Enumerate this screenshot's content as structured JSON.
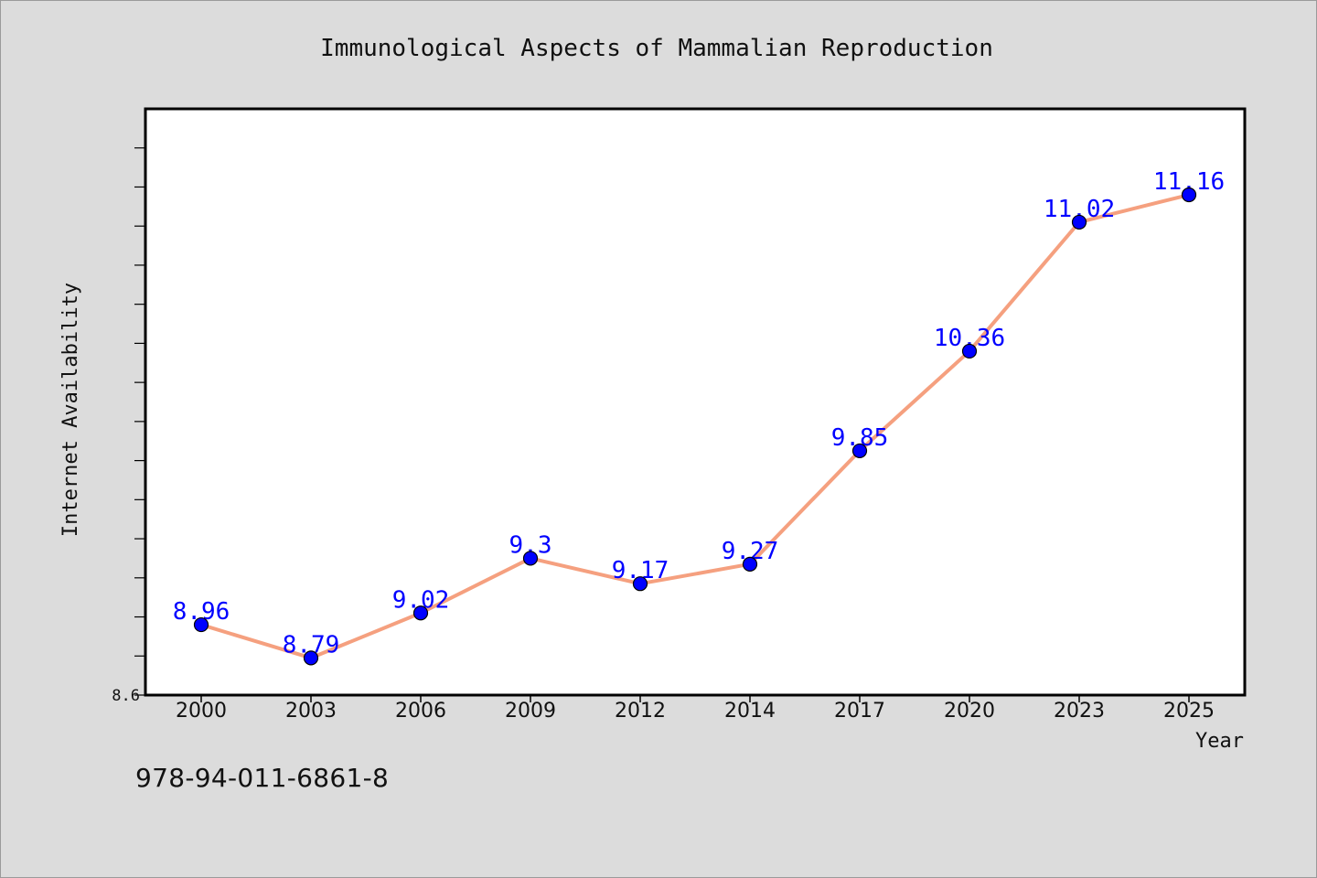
{
  "chart_data": {
    "type": "line",
    "title": "Immunological Aspects of Mammalian Reproduction",
    "xlabel": "Year",
    "ylabel": "Internet Availability",
    "categories": [
      "2000",
      "2003",
      "2006",
      "2009",
      "2012",
      "2014",
      "2017",
      "2020",
      "2023",
      "2025"
    ],
    "series": [
      {
        "values": [
          8.96,
          8.79,
          9.02,
          9.3,
          9.17,
          9.27,
          9.85,
          10.36,
          11.02,
          11.16
        ],
        "labels": [
          "8.96",
          "8.79",
          "9.02",
          "9.3",
          "9.17",
          "9.27",
          "9.85",
          "10.36",
          "11.02",
          "11.16"
        ]
      }
    ],
    "ylim": [
      8.6,
      11.6
    ],
    "y_tick_labels": [
      "8.6"
    ],
    "y_minor_tick_step": 0.2,
    "grid": false,
    "legend": "none",
    "colors": {
      "line": "#f5a07f",
      "marker": "#0000ff",
      "data_label": "#0000ff",
      "plot_background": "#ffffff",
      "page_background": "#dcdcdc"
    }
  },
  "footer": {
    "isbn": "978-94-011-6861-8"
  }
}
